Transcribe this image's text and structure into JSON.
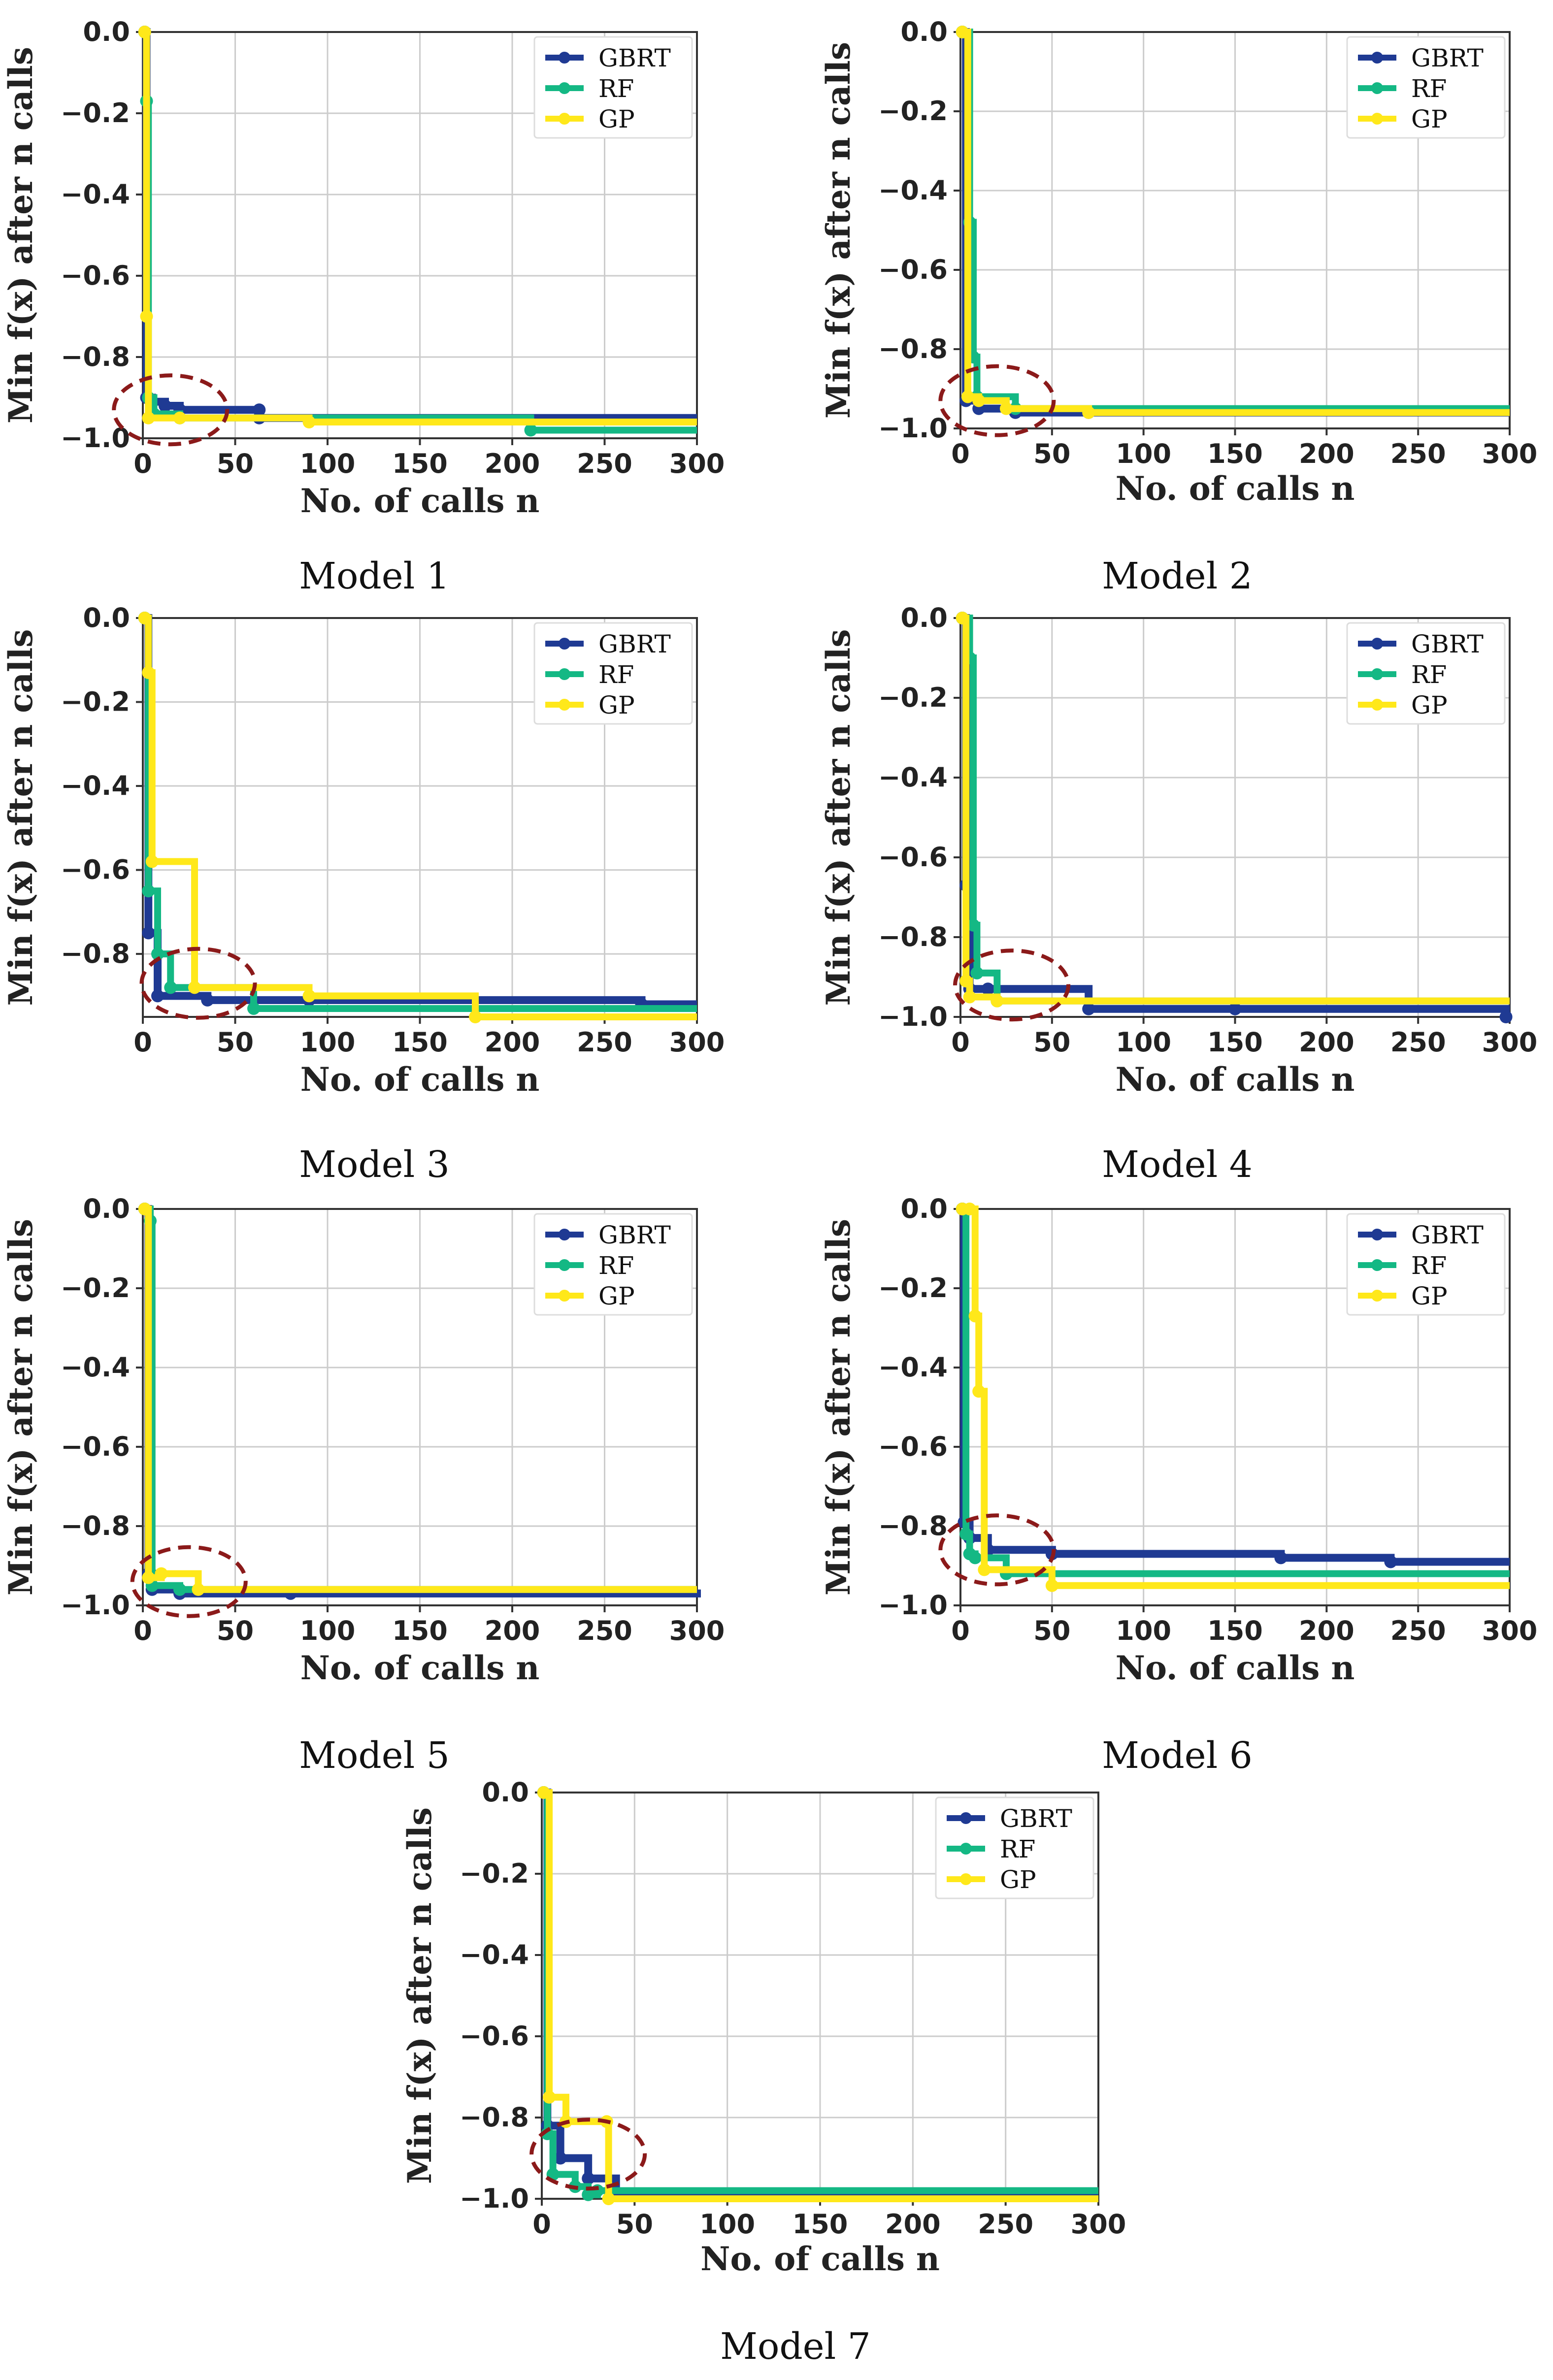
{
  "figure": {
    "colors": {
      "GBRT": "#1f3a93",
      "RF": "#14b884",
      "GP": "#ffe81a",
      "highlight": "#8b1a1a",
      "grid": "#cccccc",
      "axis": "#333333"
    }
  },
  "chart_data": [
    {
      "type": "line",
      "caption": "Model 1",
      "xlabel": "No. of calls n",
      "ylabel": "Min f(x) after n calls",
      "xlim": [
        0,
        300
      ],
      "ylim": [
        -1.0,
        0.0
      ],
      "xticks": [
        0,
        50,
        100,
        150,
        200,
        250,
        300
      ],
      "yticks": [
        -1.0,
        -0.8,
        -0.6,
        -0.4,
        -0.2,
        0.0
      ],
      "legend": [
        "GBRT",
        "RF",
        "GP"
      ],
      "legend_position": "top-right",
      "highlight_x": 15,
      "highlight_y": -0.93,
      "series": [
        {
          "name": "GBRT",
          "x": [
            1,
            2,
            5,
            12,
            20,
            63,
            63,
            300
          ],
          "y": [
            0.0,
            -0.9,
            -0.91,
            -0.92,
            -0.93,
            -0.93,
            -0.95,
            -0.95
          ]
        },
        {
          "name": "RF",
          "x": [
            1,
            2,
            3,
            6,
            20,
            210,
            300
          ],
          "y": [
            0.0,
            -0.17,
            -0.9,
            -0.94,
            -0.95,
            -0.98,
            -0.98
          ]
        },
        {
          "name": "GP",
          "x": [
            1,
            2,
            3,
            20,
            90,
            300
          ],
          "y": [
            0.0,
            -0.7,
            -0.95,
            -0.95,
            -0.96,
            -0.96
          ]
        }
      ]
    },
    {
      "type": "line",
      "caption": "Model 2",
      "xlabel": "No. of calls n",
      "ylabel": "Min f(x) after n calls",
      "xlim": [
        0,
        300
      ],
      "ylim": [
        -1.0,
        0.0
      ],
      "xticks": [
        0,
        50,
        100,
        150,
        200,
        250,
        300
      ],
      "yticks": [
        -1.0,
        -0.8,
        -0.6,
        -0.4,
        -0.2,
        0.0
      ],
      "legend": [
        "GBRT",
        "RF",
        "GP"
      ],
      "legend_position": "top-right",
      "highlight_x": 20,
      "highlight_y": -0.93,
      "series": [
        {
          "name": "GBRT",
          "x": [
            1,
            3,
            10,
            30,
            70,
            300
          ],
          "y": [
            0.0,
            -0.93,
            -0.95,
            -0.96,
            -0.96,
            -0.96
          ]
        },
        {
          "name": "RF",
          "x": [
            1,
            5,
            7,
            9,
            30,
            300
          ],
          "y": [
            0.0,
            -0.48,
            -0.82,
            -0.92,
            -0.95,
            -0.95
          ]
        },
        {
          "name": "GP",
          "x": [
            1,
            4,
            10,
            25,
            70,
            300
          ],
          "y": [
            0.0,
            -0.92,
            -0.93,
            -0.95,
            -0.96,
            -0.96
          ]
        }
      ]
    },
    {
      "type": "line",
      "caption": "Model 3",
      "xlabel": "No. of calls n",
      "ylabel": "Min f(x) after n calls",
      "xlim": [
        0,
        300
      ],
      "ylim": [
        -0.95,
        0.0
      ],
      "xticks": [
        0,
        50,
        100,
        150,
        200,
        250,
        300
      ],
      "yticks": [
        -0.8,
        -0.6,
        -0.4,
        -0.2,
        0.0
      ],
      "legend": [
        "GBRT",
        "RF",
        "GP"
      ],
      "legend_position": "top-right",
      "highlight_x": 30,
      "highlight_y": -0.87,
      "series": [
        {
          "name": "GBRT",
          "x": [
            1,
            3,
            8,
            35,
            90,
            270,
            300
          ],
          "y": [
            0.0,
            -0.75,
            -0.9,
            -0.91,
            -0.91,
            -0.92,
            -0.92
          ]
        },
        {
          "name": "RF",
          "x": [
            1,
            3,
            8,
            15,
            60,
            300
          ],
          "y": [
            0.0,
            -0.65,
            -0.8,
            -0.88,
            -0.93,
            -0.93
          ]
        },
        {
          "name": "GP",
          "x": [
            1,
            3,
            5,
            28,
            90,
            180,
            300
          ],
          "y": [
            0.0,
            -0.13,
            -0.58,
            -0.88,
            -0.9,
            -0.95,
            -0.95
          ]
        }
      ]
    },
    {
      "type": "line",
      "caption": "Model 4",
      "xlabel": "No. of calls n",
      "ylabel": "Min f(x) after n calls",
      "xlim": [
        0,
        300
      ],
      "ylim": [
        -1.0,
        0.0
      ],
      "xticks": [
        0,
        50,
        100,
        150,
        200,
        250,
        300
      ],
      "yticks": [
        -1.0,
        -0.8,
        -0.6,
        -0.4,
        -0.2,
        0.0
      ],
      "legend": [
        "GBRT",
        "RF",
        "GP"
      ],
      "legend_position": "top-right",
      "highlight_x": 28,
      "highlight_y": -0.92,
      "series": [
        {
          "name": "GBRT",
          "x": [
            1,
            3,
            5,
            15,
            70,
            150,
            298,
            300
          ],
          "y": [
            0.0,
            -0.67,
            -0.93,
            -0.93,
            -0.98,
            -0.98,
            -1.0,
            -1.0
          ]
        },
        {
          "name": "RF",
          "x": [
            1,
            5,
            7,
            9,
            20,
            300
          ],
          "y": [
            0.0,
            -0.1,
            -0.77,
            -0.89,
            -0.96,
            -0.96
          ]
        },
        {
          "name": "GP",
          "x": [
            1,
            3,
            5,
            20,
            300
          ],
          "y": [
            0.0,
            -0.91,
            -0.95,
            -0.96,
            -0.96
          ]
        }
      ]
    },
    {
      "type": "line",
      "caption": "Model 5",
      "xlabel": "No. of calls n",
      "ylabel": "Min f(x) after n calls",
      "xlim": [
        0,
        300
      ],
      "ylim": [
        -1.0,
        0.0
      ],
      "xticks": [
        0,
        50,
        100,
        150,
        200,
        250,
        300
      ],
      "yticks": [
        -1.0,
        -0.8,
        -0.6,
        -0.4,
        -0.2,
        0.0
      ],
      "legend": [
        "GBRT",
        "RF",
        "GP"
      ],
      "legend_position": "top-right",
      "highlight_x": 25,
      "highlight_y": -0.94,
      "series": [
        {
          "name": "GBRT",
          "x": [
            1,
            3,
            5,
            20,
            80,
            300
          ],
          "y": [
            0.0,
            -0.92,
            -0.96,
            -0.97,
            -0.97,
            -0.96
          ]
        },
        {
          "name": "RF",
          "x": [
            1,
            4,
            5,
            20,
            300
          ],
          "y": [
            0.0,
            -0.03,
            -0.95,
            -0.96,
            -0.96
          ]
        },
        {
          "name": "GP",
          "x": [
            1,
            3,
            10,
            30,
            300
          ],
          "y": [
            0.0,
            -0.93,
            -0.92,
            -0.96,
            -0.96
          ]
        }
      ]
    },
    {
      "type": "line",
      "caption": "Model 6",
      "xlabel": "No. of calls n",
      "ylabel": "Min f(x) after n calls",
      "xlim": [
        0,
        300
      ],
      "ylim": [
        -1.0,
        0.0
      ],
      "xticks": [
        0,
        50,
        100,
        150,
        200,
        250,
        300
      ],
      "yticks": [
        -1.0,
        -0.8,
        -0.6,
        -0.4,
        -0.2,
        0.0
      ],
      "legend": [
        "GBRT",
        "RF",
        "GP"
      ],
      "legend_position": "top-right",
      "highlight_x": 20,
      "highlight_y": -0.86,
      "series": [
        {
          "name": "GBRT",
          "x": [
            1,
            2,
            5,
            15,
            50,
            175,
            235,
            300
          ],
          "y": [
            0.0,
            -0.79,
            -0.83,
            -0.86,
            -0.87,
            -0.88,
            -0.89,
            -0.89
          ]
        },
        {
          "name": "RF",
          "x": [
            1,
            3,
            5,
            8,
            25,
            300
          ],
          "y": [
            0.0,
            -0.82,
            -0.87,
            -0.88,
            -0.92,
            -0.92
          ]
        },
        {
          "name": "GP",
          "x": [
            1,
            5,
            8,
            10,
            13,
            50,
            300
          ],
          "y": [
            0.0,
            0.0,
            -0.27,
            -0.46,
            -0.91,
            -0.95,
            -0.95
          ]
        }
      ]
    },
    {
      "type": "line",
      "caption": "Model 7",
      "xlabel": "No. of calls n",
      "ylabel": "Min f(x) after n calls",
      "xlim": [
        0,
        300
      ],
      "ylim": [
        -1.0,
        0.0
      ],
      "xticks": [
        0,
        50,
        100,
        150,
        200,
        250,
        300
      ],
      "yticks": [
        -1.0,
        -0.8,
        -0.6,
        -0.4,
        -0.2,
        0.0
      ],
      "legend": [
        "GBRT",
        "RF",
        "GP"
      ],
      "legend_position": "top-right",
      "highlight_x": 25,
      "highlight_y": -0.89,
      "series": [
        {
          "name": "GBRT",
          "x": [
            1,
            3,
            10,
            25,
            40,
            50,
            300
          ],
          "y": [
            0.0,
            -0.82,
            -0.9,
            -0.95,
            -0.99,
            -0.99,
            -0.99
          ]
        },
        {
          "name": "RF",
          "x": [
            1,
            3,
            6,
            18,
            25,
            30,
            300
          ],
          "y": [
            0.0,
            -0.84,
            -0.94,
            -0.97,
            -0.99,
            -0.98,
            -0.98
          ]
        },
        {
          "name": "GP",
          "x": [
            1,
            4,
            13,
            35,
            36,
            300
          ],
          "y": [
            0.0,
            -0.75,
            -0.81,
            -0.81,
            -1.0,
            -1.0
          ]
        }
      ]
    }
  ]
}
